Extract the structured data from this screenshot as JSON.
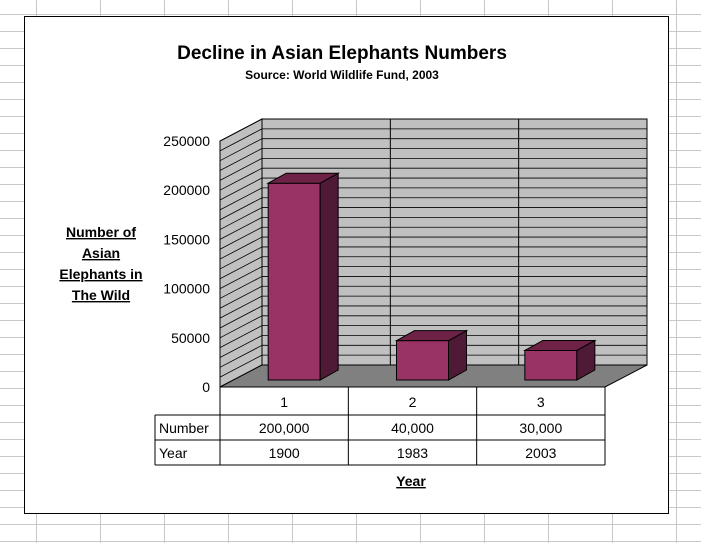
{
  "chart_data": {
    "type": "bar",
    "title": "Decline in Asian Elephants Numbers",
    "subtitle": "Source: World Wildlife Fund, 2003",
    "ylabel": "Number of Asian Elephants in The Wild",
    "ylabel_lines": [
      "Number of",
      "Asian",
      "Elephants in",
      "The Wild"
    ],
    "xlabel": "Year",
    "categories": [
      "1",
      "2",
      "3"
    ],
    "values": [
      200000,
      40000,
      30000
    ],
    "ylim": [
      0,
      250000
    ],
    "yticks": [
      "0",
      "50000",
      "100000",
      "150000",
      "200000",
      "250000"
    ],
    "legend": "none",
    "grid": true,
    "data_table": {
      "rows": [
        {
          "label": "Number",
          "cells": [
            "200,000",
            "40,000",
            "30,000"
          ]
        },
        {
          "label": "Year",
          "cells": [
            "1900",
            "1983",
            "2003"
          ]
        }
      ]
    },
    "colors": {
      "bar_front": "#993366",
      "bar_top": "#6d2246",
      "bar_side": "#4f1a35",
      "wall": "#c0c0c0",
      "floor": "#808080"
    }
  }
}
